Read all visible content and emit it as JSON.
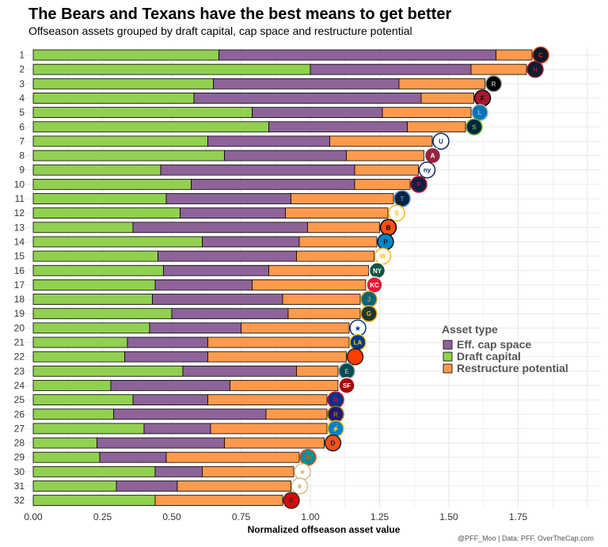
{
  "title": "The Bears and Texans have the best means to get better",
  "subtitle": "Offseason assets grouped by draft capital, cap space and restructure potential",
  "caption": "@PFF_Moo | Data: PFF, OverTheCap.com",
  "colors": {
    "draft_capital": "#92D050",
    "eff_cap_space": "#8E6399",
    "restructure_potential": "#FF9A4D",
    "grid": "#E5E5E5",
    "bar_border": "#000000"
  },
  "chart_data": {
    "type": "bar",
    "orientation": "horizontal",
    "stacked": true,
    "xlabel": "Normalized offseason asset value",
    "ylabel": "",
    "xlim": [
      0,
      2.0
    ],
    "x_ticks": [
      "0.00",
      "0.25",
      "0.50",
      "0.75",
      "1.00",
      "1.25",
      "1.50",
      "1.75"
    ],
    "x_tick_values": [
      0,
      0.25,
      0.5,
      0.75,
      1.0,
      1.25,
      1.5,
      1.75
    ],
    "grid": true,
    "legend_position": "right",
    "legend": {
      "title": "Asset type",
      "items": [
        {
          "label": "Eff. cap space",
          "key": "eff_cap_space"
        },
        {
          "label": "Draft capital",
          "key": "draft_capital"
        },
        {
          "label": "Restructure potential",
          "key": "restructure_potential"
        }
      ]
    },
    "categories": [
      "1",
      "2",
      "3",
      "4",
      "5",
      "6",
      "7",
      "8",
      "9",
      "10",
      "11",
      "12",
      "13",
      "14",
      "15",
      "16",
      "17",
      "18",
      "19",
      "20",
      "21",
      "22",
      "23",
      "24",
      "25",
      "26",
      "27",
      "28",
      "29",
      "30",
      "31",
      "32"
    ],
    "stack_order": [
      "draft_capital",
      "eff_cap_space",
      "restructure_potential"
    ],
    "series": [
      {
        "name": "Draft capital",
        "key": "draft_capital",
        "values": [
          0.67,
          1.0,
          0.65,
          0.58,
          0.79,
          0.85,
          0.63,
          0.69,
          0.46,
          0.57,
          0.48,
          0.53,
          0.36,
          0.61,
          0.45,
          0.47,
          0.44,
          0.43,
          0.5,
          0.42,
          0.34,
          0.33,
          0.54,
          0.28,
          0.36,
          0.29,
          0.4,
          0.23,
          0.24,
          0.44,
          0.3,
          0.44
        ]
      },
      {
        "name": "Eff. cap space",
        "key": "eff_cap_space",
        "values": [
          1.0,
          0.58,
          0.67,
          0.82,
          0.47,
          0.5,
          0.44,
          0.44,
          0.7,
          0.59,
          0.45,
          0.38,
          0.63,
          0.35,
          0.5,
          0.38,
          0.35,
          0.47,
          0.42,
          0.33,
          0.29,
          0.3,
          0.41,
          0.43,
          0.27,
          0.55,
          0.24,
          0.46,
          0.24,
          0.17,
          0.22,
          0.0
        ]
      },
      {
        "name": "Restructure potential",
        "key": "restructure_potential",
        "values": [
          0.13,
          0.2,
          0.31,
          0.19,
          0.32,
          0.21,
          0.37,
          0.28,
          0.23,
          0.2,
          0.37,
          0.37,
          0.26,
          0.28,
          0.28,
          0.36,
          0.41,
          0.28,
          0.26,
          0.39,
          0.51,
          0.5,
          0.15,
          0.39,
          0.43,
          0.22,
          0.42,
          0.36,
          0.48,
          0.33,
          0.41,
          0.46
        ]
      }
    ],
    "team_logos": [
      {
        "rank": 1,
        "icon": "bears-logo",
        "text": "C",
        "bg": "#0B162A",
        "fg": "#C83803"
      },
      {
        "rank": 2,
        "icon": "texans-logo",
        "text": "H",
        "bg": "#03202F",
        "fg": "#A71930"
      },
      {
        "rank": 3,
        "icon": "raiders-logo",
        "text": "RAIDERS",
        "bg": "#000000",
        "fg": "#A5ACAF"
      },
      {
        "rank": 4,
        "icon": "falcons-logo",
        "text": "F",
        "bg": "#A71930",
        "fg": "#000000"
      },
      {
        "rank": 5,
        "icon": "lions-logo",
        "text": "L",
        "bg": "#0076B6",
        "fg": "#B0B7BC"
      },
      {
        "rank": 6,
        "icon": "seahawks-logo",
        "text": "S",
        "bg": "#002244",
        "fg": "#69BE28"
      },
      {
        "rank": 7,
        "icon": "colts-logo",
        "text": "U",
        "bg": "#FFFFFF",
        "fg": "#002C5F"
      },
      {
        "rank": 8,
        "icon": "cardinals-logo",
        "text": "A",
        "bg": "#97233F",
        "fg": "#FFFFFF"
      },
      {
        "rank": 9,
        "icon": "giants-logo",
        "text": "ny",
        "bg": "#FFFFFF",
        "fg": "#0B2265"
      },
      {
        "rank": 10,
        "icon": "patriots-logo",
        "text": "P",
        "bg": "#002244",
        "fg": "#C60C30"
      },
      {
        "rank": 11,
        "icon": "titans-logo",
        "text": "T",
        "bg": "#0C2340",
        "fg": "#4B92DB"
      },
      {
        "rank": 12,
        "icon": "steelers-logo",
        "text": "S",
        "bg": "#FFFFFF",
        "fg": "#FFB612"
      },
      {
        "rank": 13,
        "icon": "bengals-logo",
        "text": "B",
        "bg": "#FB4F14",
        "fg": "#000000"
      },
      {
        "rank": 14,
        "icon": "panthers-logo",
        "text": "P",
        "bg": "#0085CA",
        "fg": "#101820"
      },
      {
        "rank": 15,
        "icon": "commanders-logo",
        "text": "W",
        "bg": "#FFFFFF",
        "fg": "#FFB612"
      },
      {
        "rank": 16,
        "icon": "jets-logo",
        "text": "NY",
        "bg": "#125740",
        "fg": "#FFFFFF"
      },
      {
        "rank": 17,
        "icon": "chiefs-logo",
        "text": "KC",
        "bg": "#E31837",
        "fg": "#FFFFFF"
      },
      {
        "rank": 18,
        "icon": "jaguars-logo",
        "text": "J",
        "bg": "#006778",
        "fg": "#D7A22A"
      },
      {
        "rank": 19,
        "icon": "packers-logo",
        "text": "G",
        "bg": "#203731",
        "fg": "#FFB612"
      },
      {
        "rank": 20,
        "icon": "cowboys-logo",
        "text": "★",
        "bg": "#FFFFFF",
        "fg": "#003594"
      },
      {
        "rank": 21,
        "icon": "rams-logo",
        "text": "LA",
        "bg": "#003594",
        "fg": "#FFD100"
      },
      {
        "rank": 22,
        "icon": "browns-logo",
        "text": "",
        "bg": "#FF3C00",
        "fg": "#311D00"
      },
      {
        "rank": 23,
        "icon": "eagles-logo",
        "text": "E",
        "bg": "#004C54",
        "fg": "#A5ACAF"
      },
      {
        "rank": 24,
        "icon": "49ers-logo",
        "text": "SF",
        "bg": "#AA0000",
        "fg": "#FFFFFF"
      },
      {
        "rank": 25,
        "icon": "bills-logo",
        "text": "B",
        "bg": "#00338D",
        "fg": "#C60C30"
      },
      {
        "rank": 26,
        "icon": "ravens-logo",
        "text": "R",
        "bg": "#241773",
        "fg": "#9E7C0C"
      },
      {
        "rank": 27,
        "icon": "chargers-logo",
        "text": "⚡",
        "bg": "#0080C6",
        "fg": "#FFC20E"
      },
      {
        "rank": 28,
        "icon": "broncos-logo",
        "text": "D",
        "bg": "#FB4F14",
        "fg": "#002244"
      },
      {
        "rank": 29,
        "icon": "dolphins-logo",
        "text": "M",
        "bg": "#008E97",
        "fg": "#FC4C02"
      },
      {
        "rank": 30,
        "icon": "saints-logo",
        "text": "⚜",
        "bg": "#FFFFFF",
        "fg": "#D3BC8D"
      },
      {
        "rank": 31,
        "icon": "saints-logo-alt",
        "text": "⚜",
        "bg": "#FFFFFF",
        "fg": "#D3BC8D"
      },
      {
        "rank": 32,
        "icon": "buccaneers-logo",
        "text": "B",
        "bg": "#D50A0A",
        "fg": "#34302B"
      }
    ]
  }
}
